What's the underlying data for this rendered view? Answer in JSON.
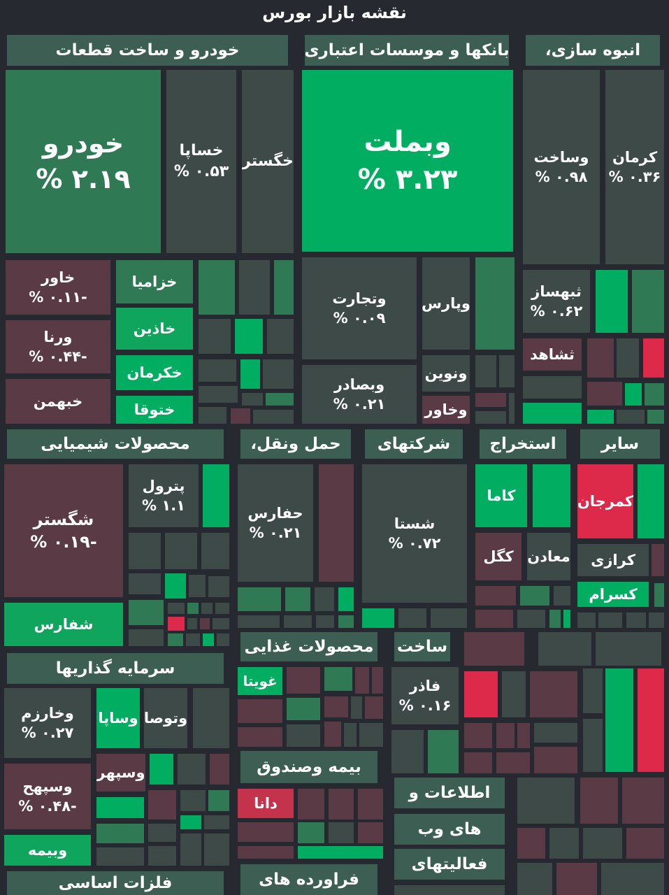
{
  "title": "نقشه بازار بورس",
  "colors": {
    "background": "#262a30",
    "strong_green": "#00ad61",
    "green": "#10a55d",
    "dark_green": "#2f7a55",
    "neutral": "#3e4a48",
    "dark_red": "#5a3a44",
    "red": "#c4324c",
    "strong_red": "#de2a4a",
    "sector_header": "#3d5f53"
  },
  "chart_data": {
    "type": "treemap",
    "title": "نقشه بازار بورس",
    "sectors": [
      {
        "name": "خودرو و ساخت قطعات",
        "stocks": [
          {
            "name": "خودرو",
            "change_label": "۲.۱۹ %"
          },
          {
            "name": "خساپا",
            "change_label": "۰.۵۳ %"
          },
          {
            "name": "خگستر",
            "change_label": ""
          },
          {
            "name": "خاور",
            "change_label": "-۰.۱۱ %"
          },
          {
            "name": "ورنا",
            "change_label": "-۰.۴۴ %"
          },
          {
            "name": "خبهمن",
            "change_label": ""
          },
          {
            "name": "خزامیا",
            "change_label": ""
          },
          {
            "name": "خاذین",
            "change_label": ""
          },
          {
            "name": "خکرمان",
            "change_label": ""
          },
          {
            "name": "ختوقا",
            "change_label": ""
          }
        ]
      },
      {
        "name": "بانکها و موسسات اعتباری",
        "stocks": [
          {
            "name": "وبملت",
            "change_label": "۳.۲۳ %"
          },
          {
            "name": "وتجارت",
            "change_label": "۰.۰۹ %"
          },
          {
            "name": "وبصادر",
            "change_label": "۰.۲۱ %"
          },
          {
            "name": "وپارس",
            "change_label": ""
          },
          {
            "name": "ونوین",
            "change_label": ""
          },
          {
            "name": "وخاور",
            "change_label": ""
          }
        ]
      },
      {
        "name": "انبوه سازی،",
        "stocks": [
          {
            "name": "وساخت",
            "change_label": "۰.۹۸ %"
          },
          {
            "name": "کرمان",
            "change_label": "۰.۳۶ %"
          },
          {
            "name": "ثبهساز",
            "change_label": "۰.۶۲ %"
          },
          {
            "name": "ثشاهد",
            "change_label": ""
          }
        ]
      },
      {
        "name": "محصولات شیمیایی",
        "stocks": [
          {
            "name": "شگستر",
            "change_label": "-۰.۱۹ %"
          },
          {
            "name": "پترول",
            "change_label": "۱.۱ %"
          },
          {
            "name": "شفارس",
            "change_label": ""
          }
        ]
      },
      {
        "name": "حمل ونقل،",
        "stocks": [
          {
            "name": "حفارس",
            "change_label": "۰.۲۱ %"
          }
        ]
      },
      {
        "name": "شرکتهای",
        "stocks": [
          {
            "name": "شستا",
            "change_label": "۰.۷۲ %"
          }
        ]
      },
      {
        "name": "استخراج",
        "stocks": [
          {
            "name": "کاما",
            "change_label": ""
          },
          {
            "name": "کگل",
            "change_label": ""
          },
          {
            "name": "معادن",
            "change_label": ""
          }
        ]
      },
      {
        "name": "سایر",
        "stocks": [
          {
            "name": "کمرجان",
            "change_label": ""
          },
          {
            "name": "کرازی",
            "change_label": ""
          },
          {
            "name": "کسرام",
            "change_label": ""
          }
        ]
      },
      {
        "name": "سرمایه گذاریها",
        "stocks": [
          {
            "name": "وخارزم",
            "change_label": "۰.۲۷ %"
          },
          {
            "name": "وساپا",
            "change_label": ""
          },
          {
            "name": "وتوصا",
            "change_label": ""
          },
          {
            "name": "وسپهر",
            "change_label": ""
          },
          {
            "name": "وسپهح",
            "change_label": "-۰.۴۸ %"
          },
          {
            "name": "وبیمه",
            "change_label": ""
          }
        ]
      },
      {
        "name": "محصولات غذایی",
        "stocks": [
          {
            "name": "غویتا",
            "change_label": ""
          }
        ]
      },
      {
        "name": "ساخت",
        "stocks": [
          {
            "name": "فاذر",
            "change_label": "۰.۱۶ %"
          }
        ]
      },
      {
        "name": "بیمه وصندوق",
        "stocks": [
          {
            "name": "دانا",
            "change_label": ""
          }
        ]
      },
      {
        "name": "اطلاعات و",
        "stocks": []
      },
      {
        "name": "های وب",
        "stocks": []
      },
      {
        "name": "فعالیتهای",
        "stocks": []
      },
      {
        "name": "فلزات اساسی",
        "stocks": []
      },
      {
        "name": "فراورده های",
        "stocks": []
      }
    ]
  }
}
